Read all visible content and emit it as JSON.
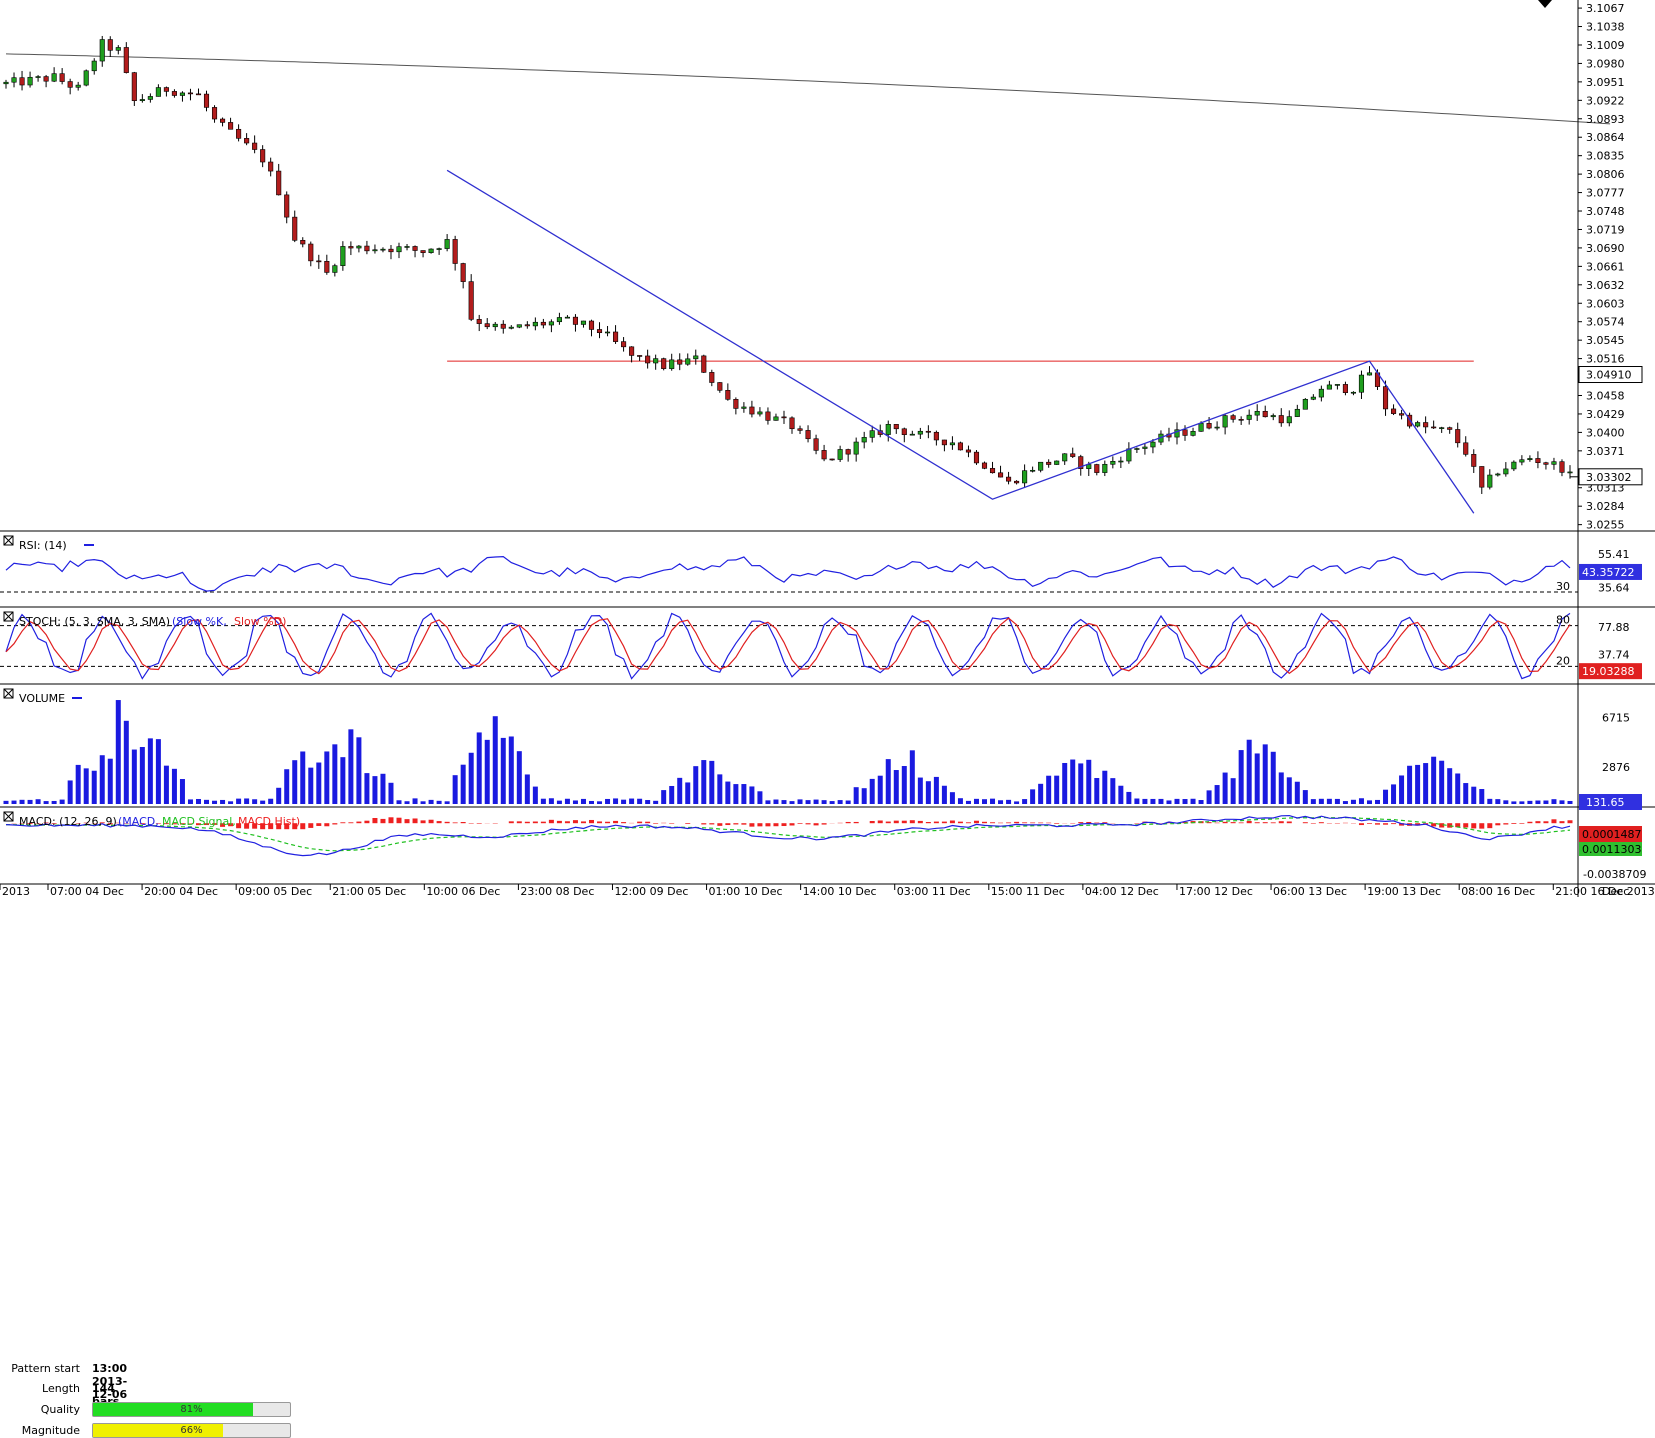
{
  "chart_data": {
    "type": "candlestick",
    "instrument_price": {
      "y_ticks": [
        "3.1067",
        "3.1038",
        "3.1009",
        "3.0980",
        "3.0951",
        "3.0922",
        "3.0893",
        "3.0864",
        "3.0835",
        "3.0806",
        "3.0777",
        "3.0748",
        "3.0719",
        "3.0690",
        "3.0661",
        "3.0632",
        "3.0603",
        "3.0574",
        "3.0545",
        "3.0516",
        "3.0458",
        "3.0429",
        "3.0400",
        "3.0371",
        "3.0313",
        "3.0284",
        "3.0255"
      ],
      "ylim": [
        3.0245,
        3.1075
      ],
      "ma_label": "3.04910",
      "last_price_label": "3.03302",
      "ma_value": 3.0491,
      "last_price": 3.03302,
      "resistance_level": 3.0512,
      "pattern_points": [
        {
          "bar": 55,
          "price": 3.0812
        },
        {
          "bar": 123,
          "price": 3.0295
        },
        {
          "bar": 170,
          "price": 3.0512
        },
        {
          "bar": 183,
          "price": 3.0273
        }
      ]
    },
    "x_ticks": [
      "2013",
      "07:00 04 Dec",
      "20:00 04 Dec",
      "09:00 05 Dec",
      "21:00 05 Dec",
      "10:00 06 Dec",
      "23:00 08 Dec",
      "12:00 09 Dec",
      "01:00 10 Dec",
      "14:00 10 Dec",
      "03:00 11 Dec",
      "15:00 11 Dec",
      "04:00 12 Dec",
      "17:00 12 Dec",
      "06:00 13 Dec",
      "19:00 13 Dec",
      "08:00 16 Dec",
      "21:00 16 Dec",
      "Dec 2013"
    ],
    "rsi": {
      "label": "RSI: (14)",
      "ticks": [
        "55.41",
        "35.64"
      ],
      "level_label": "30",
      "current": "43.35722",
      "last": 43.36,
      "ylim": [
        20,
        70
      ]
    },
    "stoch": {
      "label_prefix": "STOCH: (5, 3, SMA, 3, SMA)",
      "k_label": "Slow %K",
      "d_label": "Slow %D",
      "ticks": [
        "77.88",
        "37.74"
      ],
      "upper_label": "80",
      "lower_label": "20",
      "current": "19.03288",
      "ylim": [
        0,
        100
      ]
    },
    "volume": {
      "label": "VOLUME",
      "ticks": [
        "6715",
        "2876"
      ],
      "current": "131.65",
      "ylim": [
        0,
        9000
      ]
    },
    "macd": {
      "label_prefix": "MACD: (12, 26, 9)",
      "macd_label": "MACD",
      "signal_label": "MACD Signal",
      "hist_label": "MACD Hist",
      "ticks": [
        "-0.0038709"
      ],
      "macd_current": "0.0001487",
      "signal_current": "0.0011303",
      "ylim": [
        -0.0048,
        0.0022
      ]
    }
  },
  "pattern_info": {
    "start_label": "Pattern start",
    "start_value": "13:00 2013-12-06",
    "length_label": "Length",
    "length_value": "144 bars",
    "quality_label": "Quality",
    "quality_value": "81%",
    "quality_pct": 81,
    "magnitude_label": "Magnitude",
    "magnitude_value": "66%",
    "magnitude_pct": 66
  },
  "colors": {
    "bull": "#1f9f1f",
    "bear": "#b21c1c",
    "pattern": "#3030d0",
    "resistance": "#e02020",
    "ma": "#555555",
    "rsi": "#2020e0",
    "stoch_k": "#2020e0",
    "stoch_d": "#e02020",
    "volume": "#1a1ae0",
    "macd": "#2020e0",
    "signal": "#20c020",
    "hist": "#ee2020",
    "quality": "#22dd22",
    "magnitude": "#f0f000"
  }
}
